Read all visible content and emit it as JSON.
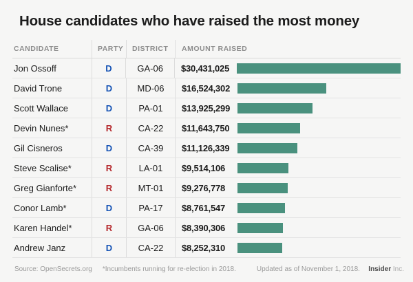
{
  "title": "House candidates who have raised the most money",
  "table": {
    "headers": {
      "candidate": "CANDIDATE",
      "party": "PARTY",
      "district": "DISTRICT",
      "amount": "AMOUNT RAISED"
    },
    "rows": [
      {
        "candidate": "Jon Ossoff",
        "party": "D",
        "district": "GA-06",
        "amount": "$30,431,025",
        "value": 30431025
      },
      {
        "candidate": "David Trone",
        "party": "D",
        "district": "MD-06",
        "amount": "$16,524,302",
        "value": 16524302
      },
      {
        "candidate": "Scott Wallace",
        "party": "D",
        "district": "PA-01",
        "amount": "$13,925,299",
        "value": 13925299
      },
      {
        "candidate": "Devin Nunes*",
        "party": "R",
        "district": "CA-22",
        "amount": "$11,643,750",
        "value": 11643750
      },
      {
        "candidate": "Gil Cisneros",
        "party": "D",
        "district": "CA-39",
        "amount": "$11,126,339",
        "value": 11126339
      },
      {
        "candidate": "Steve Scalise*",
        "party": "R",
        "district": "LA-01",
        "amount": "$9,514,106",
        "value": 9514106
      },
      {
        "candidate": "Greg Gianforte*",
        "party": "R",
        "district": "MT-01",
        "amount": "$9,276,778",
        "value": 9276778
      },
      {
        "candidate": "Conor Lamb*",
        "party": "D",
        "district": "PA-17",
        "amount": "$8,761,547",
        "value": 8761547
      },
      {
        "candidate": "Karen Handel*",
        "party": "R",
        "district": "GA-06",
        "amount": "$8,390,306",
        "value": 8390306
      },
      {
        "candidate": "Andrew Janz",
        "party": "D",
        "district": "CA-22",
        "amount": "$8,252,310",
        "value": 8252310
      }
    ]
  },
  "footer": {
    "source": "Source: OpenSecrets.org",
    "note": "*Incumbents running for re-election in 2018.",
    "updated": "Updated as of November 1, 2018.",
    "brand_bold": "Insider",
    "brand_light": "Inc."
  },
  "colors": {
    "background": "#f6f6f5",
    "bar": "#4a917e",
    "democrat_blue": "#1553b5",
    "republican_red": "#b5282c"
  },
  "chart_data": {
    "type": "bar",
    "orientation": "horizontal",
    "title": "House candidates who have raised the most money",
    "categories": [
      "Jon Ossoff",
      "David Trone",
      "Scott Wallace",
      "Devin Nunes*",
      "Gil Cisneros",
      "Steve Scalise*",
      "Greg Gianforte*",
      "Conor Lamb*",
      "Karen Handel*",
      "Andrew Janz"
    ],
    "values": [
      30431025,
      16524302,
      13925299,
      11643750,
      11126339,
      9514106,
      9276778,
      8761547,
      8390306,
      8252310
    ],
    "value_labels": [
      "$30,431,025",
      "$16,524,302",
      "$13,925,299",
      "$11,643,750",
      "$11,126,339",
      "$9,514,106",
      "$9,276,778",
      "$8,761,547",
      "$8,390,306",
      "$8,252,310"
    ],
    "series_meta": {
      "party": [
        "D",
        "D",
        "D",
        "R",
        "D",
        "R",
        "R",
        "D",
        "R",
        "D"
      ],
      "district": [
        "GA-06",
        "MD-06",
        "PA-01",
        "CA-22",
        "CA-39",
        "LA-01",
        "MT-01",
        "PA-17",
        "GA-06",
        "CA-22"
      ]
    },
    "xlabel": "",
    "ylabel": "",
    "xlim": [
      0,
      30431025
    ],
    "grid": false,
    "legend": false,
    "bar_color": "#4a917e"
  }
}
